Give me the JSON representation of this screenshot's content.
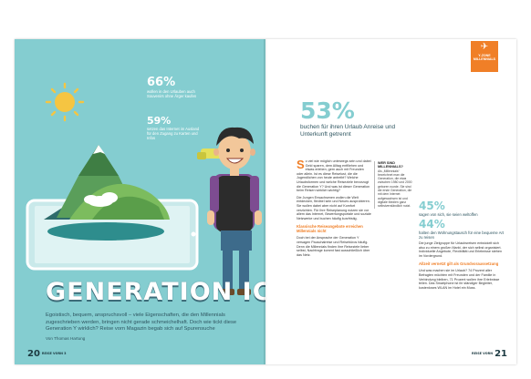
{
  "left_page": {
    "stats": [
      {
        "value": "66%",
        "text": "wollen in den Urlauben auch Souvenirs ohne Ärger kaufen"
      },
      {
        "value": "59%",
        "text": "setzen das Internet im Ausland für den Zugang zu Karten und Infos"
      }
    ],
    "title": "GENERATION ICH",
    "intro": "Egoistisch, bequem, anspruchsvoll – viele Eigenschaften, die den Millennials zugeschrieben werden, bringen nicht gerade schmeichelhaft. Doch wie tickt diese Generation Y wirklich? Reise vorn Magazin begab sich auf Spurensuche",
    "byline": "Von Thomas Hartung",
    "folio": "20",
    "folio_label": "REISE VORN 3"
  },
  "right_page": {
    "badge": {
      "icon": "suitcase-icon",
      "line1": "Y-ZONE",
      "line2": "MILLENNIALS"
    },
    "big_stat": "53%",
    "big_stat_text": "buchen für ihren Urlaub Anreise und Unterkunft getrennt",
    "col1_top": {
      "dropcap": "S",
      "text": "o viel wie möglich unterwegs sein und dabei Geld sparen, dem Alltag entfliehen und etwas erleben, gern auch mit Freunden oder allein. Ist es diese Reiselust, die die Jugendlichen von heute antreibt? Welche Urlaubsformen und welche Reiseziele bevorzugt die Generation Y? Und was ist dieser Generation beim Reisen wirklich wichtig?"
    },
    "col1_mid": "Die Jungen Erwachsenen wollen die Welt entdecken, flexibel sein und Neues ausprobieren. Sie wollen dabei aber nicht auf Komfort verzichten. Für ihre Reiseplanung nutzen sie vor allem das Internet, Bewertungsportale und soziale Netzwerke und buchen häufig kurzfristig.",
    "col1_heading": "Klassische Reiseangebote erreichen Millennials nicht",
    "col1_bottom": "Doch bei der Ansprache der Generation Y versagen Pauschalreise und Reisebüros häufig. Denn die Millennials finden ihre Reiseziele lieber selbst, Nachfrage kommt fast ausschließlich über das Netz.",
    "col2_top": "Die junge Zielgruppe für Urlaubsreisen entwickelt sich also zu einem großen Markt, der sich selbst organisiert. Individuelle Angebote, Flexibilität und Erlebnisse stehen im Vordergrund.",
    "col2_heading": "Allzeit vernetzt gilt als Grundvoraussetzung",
    "col2_bottom": "Und was machen sie im Urlaub? 74 Prozent aller Befragten möchten mit Freunden und der Familie in Verbindung bleiben, 71 Prozent wollen ihre Erlebnisse teilen. Das Smartphone ist ihr ständiger Begleiter, kostenloses WLAN im Hotel ein Muss.",
    "sidebar": {
      "title": "WER SIND MILLENNIALS?",
      "text": "Als „Millennials“ bezeichnet man die Generation, die etwa zwischen 1980 und 2000 geboren wurde. Sie sind die erste Generation, die mit dem Internet aufgewachsen ist und digitale Medien ganz selbstverständlich nutzt."
    },
    "stats": [
      {
        "value": "45%",
        "text": "sagen von sich, sie seien weltoffen"
      },
      {
        "value": "44%",
        "text": "halten den Wohnungstausch für eine bequeme Art zu reisen"
      }
    ],
    "folio": "21",
    "folio_label": "REISE VORN"
  }
}
